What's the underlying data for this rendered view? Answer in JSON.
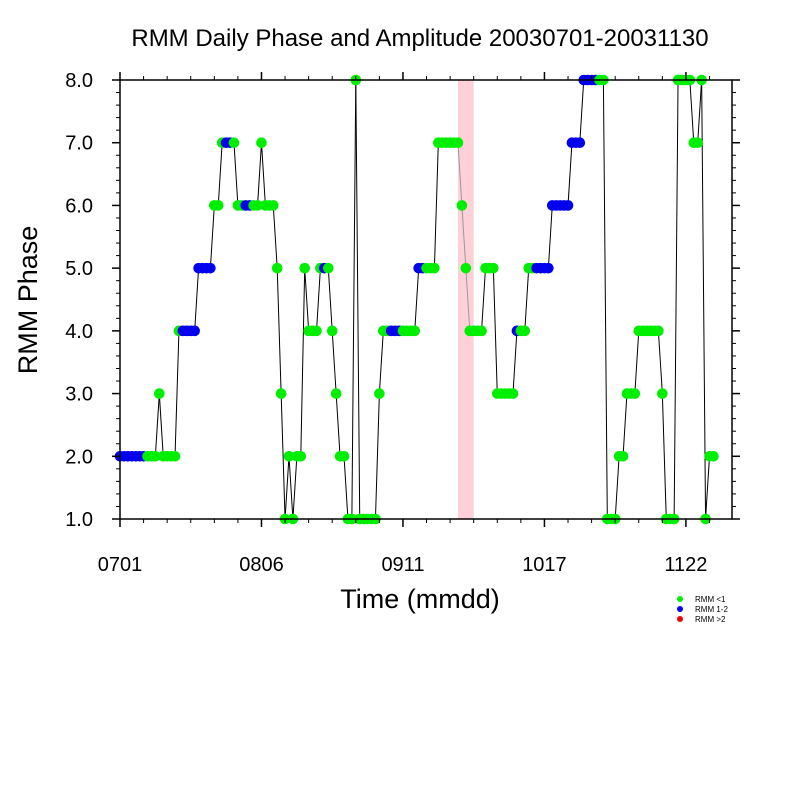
{
  "chart_data": {
    "type": "scatter",
    "title": "RMM Daily Phase and Amplitude 20030701-20031130",
    "xlabel": "Time (mmdd)",
    "ylabel": "RMM Phase",
    "x_unit": "day index from 0701",
    "xlim": [
      0,
      152
    ],
    "ylim": [
      1,
      8
    ],
    "x_ticks": [
      {
        "label": "0701",
        "day": 0
      },
      {
        "label": "0806",
        "day": 36
      },
      {
        "label": "0911",
        "day": 72
      },
      {
        "label": "1017",
        "day": 108
      },
      {
        "label": "1122",
        "day": 144
      }
    ],
    "y_ticks": [
      {
        "label": "1.0",
        "value": 1
      },
      {
        "label": "2.0",
        "value": 2
      },
      {
        "label": "3.0",
        "value": 3
      },
      {
        "label": "4.0",
        "value": 4
      },
      {
        "label": "5.0",
        "value": 5
      },
      {
        "label": "6.0",
        "value": 6
      },
      {
        "label": "7.0",
        "value": 7
      },
      {
        "label": "8.0",
        "value": 8
      }
    ],
    "shaded_band": {
      "x_start": 86,
      "x_end": 90,
      "color": "#ffd0d8"
    },
    "colors": {
      "lt1": "#00ee00",
      "1to2": "#0000ee",
      "gt2": "#ee0000",
      "line": "#000000"
    },
    "legend": {
      "placement": "bottom-right",
      "entries": [
        {
          "label": "RMM <1",
          "key": "lt1"
        },
        {
          "label": "RMM 1-2",
          "key": "1to2"
        },
        {
          "label": "RMM >2",
          "key": "gt2"
        }
      ]
    },
    "points": [
      {
        "day": 0,
        "phase": 2,
        "amp": "1to2"
      },
      {
        "day": 1,
        "phase": 2,
        "amp": "1to2"
      },
      {
        "day": 2,
        "phase": 2,
        "amp": "1to2"
      },
      {
        "day": 3,
        "phase": 2,
        "amp": "1to2"
      },
      {
        "day": 4,
        "phase": 2,
        "amp": "1to2"
      },
      {
        "day": 5,
        "phase": 2,
        "amp": "1to2"
      },
      {
        "day": 6,
        "phase": 2,
        "amp": "1to2"
      },
      {
        "day": 7,
        "phase": 2,
        "amp": "lt1"
      },
      {
        "day": 8,
        "phase": 2,
        "amp": "lt1"
      },
      {
        "day": 9,
        "phase": 2,
        "amp": "lt1"
      },
      {
        "day": 10,
        "phase": 3,
        "amp": "lt1"
      },
      {
        "day": 11,
        "phase": 2,
        "amp": "lt1"
      },
      {
        "day": 12,
        "phase": 2,
        "amp": "lt1"
      },
      {
        "day": 13,
        "phase": 2,
        "amp": "lt1"
      },
      {
        "day": 14,
        "phase": 2,
        "amp": "lt1"
      },
      {
        "day": 15,
        "phase": 4,
        "amp": "lt1"
      },
      {
        "day": 16,
        "phase": 4,
        "amp": "1to2"
      },
      {
        "day": 17,
        "phase": 4,
        "amp": "1to2"
      },
      {
        "day": 18,
        "phase": 4,
        "amp": "1to2"
      },
      {
        "day": 19,
        "phase": 4,
        "amp": "1to2"
      },
      {
        "day": 20,
        "phase": 5,
        "amp": "1to2"
      },
      {
        "day": 21,
        "phase": 5,
        "amp": "1to2"
      },
      {
        "day": 22,
        "phase": 5,
        "amp": "1to2"
      },
      {
        "day": 23,
        "phase": 5,
        "amp": "1to2"
      },
      {
        "day": 24,
        "phase": 6,
        "amp": "lt1"
      },
      {
        "day": 25,
        "phase": 6,
        "amp": "lt1"
      },
      {
        "day": 26,
        "phase": 7,
        "amp": "lt1"
      },
      {
        "day": 27,
        "phase": 7,
        "amp": "1to2"
      },
      {
        "day": 28,
        "phase": 7,
        "amp": "1to2"
      },
      {
        "day": 29,
        "phase": 7,
        "amp": "lt1"
      },
      {
        "day": 30,
        "phase": 6,
        "amp": "lt1"
      },
      {
        "day": 31,
        "phase": 6,
        "amp": "lt1"
      },
      {
        "day": 32,
        "phase": 6,
        "amp": "1to2"
      },
      {
        "day": 33,
        "phase": 6,
        "amp": "1to2"
      },
      {
        "day": 34,
        "phase": 6,
        "amp": "lt1"
      },
      {
        "day": 35,
        "phase": 6,
        "amp": "lt1"
      },
      {
        "day": 36,
        "phase": 7,
        "amp": "lt1"
      },
      {
        "day": 37,
        "phase": 6,
        "amp": "lt1"
      },
      {
        "day": 38,
        "phase": 6,
        "amp": "lt1"
      },
      {
        "day": 39,
        "phase": 6,
        "amp": "lt1"
      },
      {
        "day": 40,
        "phase": 5,
        "amp": "lt1"
      },
      {
        "day": 41,
        "phase": 3,
        "amp": "lt1"
      },
      {
        "day": 42,
        "phase": 1,
        "amp": "lt1"
      },
      {
        "day": 43,
        "phase": 2,
        "amp": "lt1"
      },
      {
        "day": 44,
        "phase": 1,
        "amp": "lt1"
      },
      {
        "day": 45,
        "phase": 2,
        "amp": "lt1"
      },
      {
        "day": 46,
        "phase": 2,
        "amp": "lt1"
      },
      {
        "day": 47,
        "phase": 5,
        "amp": "lt1"
      },
      {
        "day": 48,
        "phase": 4,
        "amp": "lt1"
      },
      {
        "day": 49,
        "phase": 4,
        "amp": "lt1"
      },
      {
        "day": 50,
        "phase": 4,
        "amp": "lt1"
      },
      {
        "day": 51,
        "phase": 5,
        "amp": "lt1"
      },
      {
        "day": 52,
        "phase": 5,
        "amp": "1to2"
      },
      {
        "day": 53,
        "phase": 5,
        "amp": "lt1"
      },
      {
        "day": 54,
        "phase": 4,
        "amp": "lt1"
      },
      {
        "day": 55,
        "phase": 3,
        "amp": "lt1"
      },
      {
        "day": 56,
        "phase": 2,
        "amp": "lt1"
      },
      {
        "day": 57,
        "phase": 2,
        "amp": "lt1"
      },
      {
        "day": 58,
        "phase": 1,
        "amp": "lt1"
      },
      {
        "day": 59,
        "phase": 1,
        "amp": "lt1"
      },
      {
        "day": 60,
        "phase": 8,
        "amp": "lt1"
      },
      {
        "day": 61,
        "phase": 1,
        "amp": "lt1"
      },
      {
        "day": 62,
        "phase": 1,
        "amp": "lt1"
      },
      {
        "day": 63,
        "phase": 1,
        "amp": "lt1"
      },
      {
        "day": 64,
        "phase": 1,
        "amp": "lt1"
      },
      {
        "day": 65,
        "phase": 1,
        "amp": "lt1"
      },
      {
        "day": 66,
        "phase": 3,
        "amp": "lt1"
      },
      {
        "day": 67,
        "phase": 4,
        "amp": "lt1"
      },
      {
        "day": 68,
        "phase": 4,
        "amp": "lt1"
      },
      {
        "day": 69,
        "phase": 4,
        "amp": "1to2"
      },
      {
        "day": 70,
        "phase": 4,
        "amp": "1to2"
      },
      {
        "day": 71,
        "phase": 4,
        "amp": "1to2"
      },
      {
        "day": 72,
        "phase": 4,
        "amp": "lt1"
      },
      {
        "day": 73,
        "phase": 4,
        "amp": "lt1"
      },
      {
        "day": 74,
        "phase": 4,
        "amp": "lt1"
      },
      {
        "day": 75,
        "phase": 4,
        "amp": "lt1"
      },
      {
        "day": 76,
        "phase": 5,
        "amp": "1to2"
      },
      {
        "day": 77,
        "phase": 5,
        "amp": "1to2"
      },
      {
        "day": 78,
        "phase": 5,
        "amp": "lt1"
      },
      {
        "day": 79,
        "phase": 5,
        "amp": "lt1"
      },
      {
        "day": 80,
        "phase": 5,
        "amp": "lt1"
      },
      {
        "day": 81,
        "phase": 7,
        "amp": "lt1"
      },
      {
        "day": 82,
        "phase": 7,
        "amp": "lt1"
      },
      {
        "day": 83,
        "phase": 7,
        "amp": "lt1"
      },
      {
        "day": 84,
        "phase": 7,
        "amp": "lt1"
      },
      {
        "day": 85,
        "phase": 7,
        "amp": "lt1"
      },
      {
        "day": 86,
        "phase": 7,
        "amp": "lt1"
      },
      {
        "day": 87,
        "phase": 6,
        "amp": "lt1"
      },
      {
        "day": 88,
        "phase": 5,
        "amp": "lt1"
      },
      {
        "day": 89,
        "phase": 4,
        "amp": "lt1"
      },
      {
        "day": 90,
        "phase": 4,
        "amp": "lt1"
      },
      {
        "day": 91,
        "phase": 4,
        "amp": "lt1"
      },
      {
        "day": 92,
        "phase": 4,
        "amp": "lt1"
      },
      {
        "day": 93,
        "phase": 5,
        "amp": "lt1"
      },
      {
        "day": 94,
        "phase": 5,
        "amp": "lt1"
      },
      {
        "day": 95,
        "phase": 5,
        "amp": "lt1"
      },
      {
        "day": 96,
        "phase": 3,
        "amp": "lt1"
      },
      {
        "day": 97,
        "phase": 3,
        "amp": "lt1"
      },
      {
        "day": 98,
        "phase": 3,
        "amp": "lt1"
      },
      {
        "day": 99,
        "phase": 3,
        "amp": "lt1"
      },
      {
        "day": 100,
        "phase": 3,
        "amp": "lt1"
      },
      {
        "day": 101,
        "phase": 4,
        "amp": "1to2"
      },
      {
        "day": 102,
        "phase": 4,
        "amp": "lt1"
      },
      {
        "day": 103,
        "phase": 4,
        "amp": "lt1"
      },
      {
        "day": 104,
        "phase": 5,
        "amp": "lt1"
      },
      {
        "day": 105,
        "phase": 5,
        "amp": "lt1"
      },
      {
        "day": 106,
        "phase": 5,
        "amp": "1to2"
      },
      {
        "day": 107,
        "phase": 5,
        "amp": "1to2"
      },
      {
        "day": 108,
        "phase": 5,
        "amp": "1to2"
      },
      {
        "day": 109,
        "phase": 5,
        "amp": "1to2"
      },
      {
        "day": 110,
        "phase": 6,
        "amp": "1to2"
      },
      {
        "day": 111,
        "phase": 6,
        "amp": "1to2"
      },
      {
        "day": 112,
        "phase": 6,
        "amp": "1to2"
      },
      {
        "day": 113,
        "phase": 6,
        "amp": "1to2"
      },
      {
        "day": 114,
        "phase": 6,
        "amp": "1to2"
      },
      {
        "day": 115,
        "phase": 7,
        "amp": "1to2"
      },
      {
        "day": 116,
        "phase": 7,
        "amp": "1to2"
      },
      {
        "day": 117,
        "phase": 7,
        "amp": "1to2"
      },
      {
        "day": 118,
        "phase": 8,
        "amp": "1to2"
      },
      {
        "day": 119,
        "phase": 8,
        "amp": "1to2"
      },
      {
        "day": 120,
        "phase": 8,
        "amp": "1to2"
      },
      {
        "day": 121,
        "phase": 8,
        "amp": "1to2"
      },
      {
        "day": 122,
        "phase": 8,
        "amp": "lt1"
      },
      {
        "day": 123,
        "phase": 8,
        "amp": "lt1"
      },
      {
        "day": 124,
        "phase": 1,
        "amp": "lt1"
      },
      {
        "day": 125,
        "phase": 1,
        "amp": "lt1"
      },
      {
        "day": 126,
        "phase": 1,
        "amp": "lt1"
      },
      {
        "day": 127,
        "phase": 2,
        "amp": "lt1"
      },
      {
        "day": 128,
        "phase": 2,
        "amp": "lt1"
      },
      {
        "day": 129,
        "phase": 3,
        "amp": "lt1"
      },
      {
        "day": 130,
        "phase": 3,
        "amp": "lt1"
      },
      {
        "day": 131,
        "phase": 3,
        "amp": "lt1"
      },
      {
        "day": 132,
        "phase": 4,
        "amp": "lt1"
      },
      {
        "day": 133,
        "phase": 4,
        "amp": "lt1"
      },
      {
        "day": 134,
        "phase": 4,
        "amp": "lt1"
      },
      {
        "day": 135,
        "phase": 4,
        "amp": "lt1"
      },
      {
        "day": 136,
        "phase": 4,
        "amp": "lt1"
      },
      {
        "day": 137,
        "phase": 4,
        "amp": "lt1"
      },
      {
        "day": 138,
        "phase": 3,
        "amp": "lt1"
      },
      {
        "day": 139,
        "phase": 1,
        "amp": "lt1"
      },
      {
        "day": 140,
        "phase": 1,
        "amp": "lt1"
      },
      {
        "day": 141,
        "phase": 1,
        "amp": "lt1"
      },
      {
        "day": 142,
        "phase": 8,
        "amp": "lt1"
      },
      {
        "day": 143,
        "phase": 8,
        "amp": "lt1"
      },
      {
        "day": 144,
        "phase": 8,
        "amp": "lt1"
      },
      {
        "day": 145,
        "phase": 8,
        "amp": "lt1"
      },
      {
        "day": 146,
        "phase": 7,
        "amp": "lt1"
      },
      {
        "day": 147,
        "phase": 7,
        "amp": "lt1"
      },
      {
        "day": 148,
        "phase": 8,
        "amp": "lt1"
      },
      {
        "day": 149,
        "phase": 1,
        "amp": "lt1"
      },
      {
        "day": 150,
        "phase": 2,
        "amp": "lt1"
      },
      {
        "day": 151,
        "phase": 2,
        "amp": "lt1"
      }
    ]
  }
}
